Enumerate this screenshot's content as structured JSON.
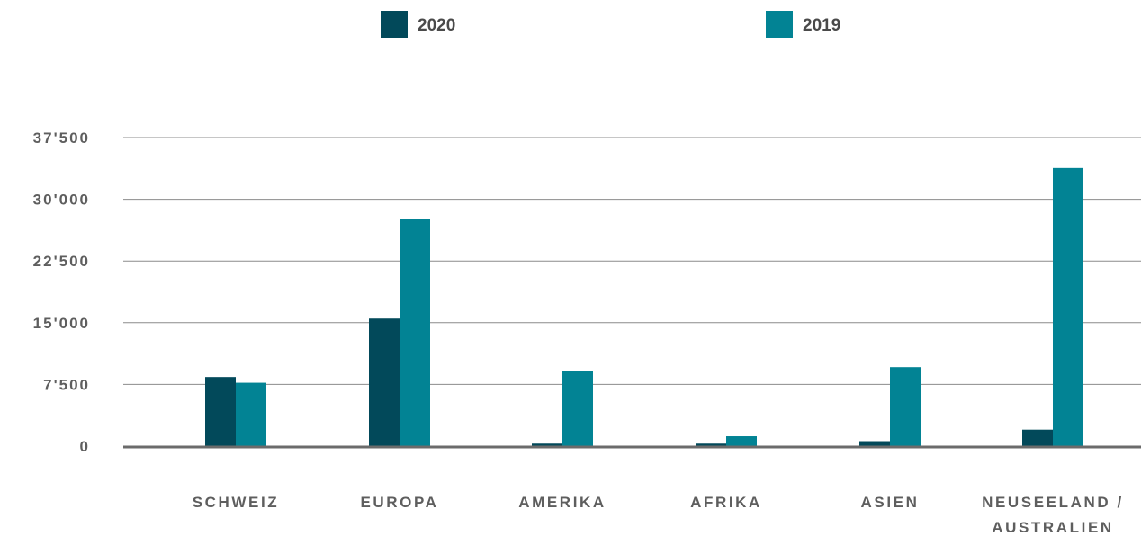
{
  "chart_data": {
    "type": "bar",
    "categories": [
      "SCHWEIZ",
      "EUROPA",
      "AMERIKA",
      "AFRIKA",
      "ASIEN",
      "NEUSEELAND / AUSTRALIEN"
    ],
    "category_lines": [
      [
        "SCHWEIZ"
      ],
      [
        "EUROPA"
      ],
      [
        "AMERIKA"
      ],
      [
        "AFRIKA"
      ],
      [
        "ASIEN"
      ],
      [
        "NEUSEELAND /",
        "AUSTRALIEN"
      ]
    ],
    "series": [
      {
        "name": "2020",
        "color": "#02495a",
        "values": [
          8400,
          15500,
          300,
          300,
          600,
          2000
        ]
      },
      {
        "name": "2019",
        "color": "#028394",
        "values": [
          7700,
          27600,
          9100,
          1200,
          9600,
          33800
        ]
      }
    ],
    "y_ticks": [
      0,
      7500,
      15000,
      22500,
      30000,
      37500
    ],
    "y_tick_labels": [
      "0",
      "7'500",
      "15'000",
      "22'500",
      "30'000",
      "37'500"
    ],
    "ylim": [
      0,
      37500
    ],
    "grid": true,
    "legend_position": "top"
  }
}
